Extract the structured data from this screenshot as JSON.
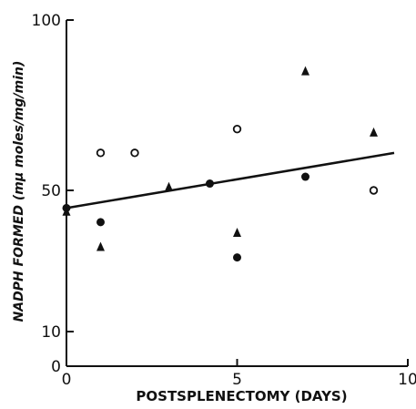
{
  "chart_data": {
    "type": "scatter",
    "title": "",
    "xlabel": "POSTSPLENECTOMY (DAYS)",
    "ylabel": "NADPH FORMED (mμ moles/mg/min)",
    "xlim": [
      0,
      10
    ],
    "ylim": [
      0,
      100
    ],
    "x_ticks": [
      0,
      5,
      10
    ],
    "x_tick_labels": [
      "0",
      "5",
      "10"
    ],
    "y_ticks": [
      0,
      10,
      50,
      100
    ],
    "y_tick_labels": [
      "0",
      "10",
      "50",
      "100"
    ],
    "grid": false,
    "legend": "none",
    "series": [
      {
        "marker": "open-circle",
        "points": [
          [
            1,
            61
          ],
          [
            2,
            61
          ],
          [
            5,
            68
          ],
          [
            9,
            50
          ]
        ]
      },
      {
        "marker": "filled-circle",
        "points": [
          [
            0,
            45
          ],
          [
            1,
            41
          ],
          [
            4.2,
            52
          ],
          [
            5,
            31
          ],
          [
            7,
            54
          ]
        ]
      },
      {
        "marker": "filled-triangle",
        "points": [
          [
            0,
            44
          ],
          [
            1,
            34
          ],
          [
            3,
            51
          ],
          [
            5,
            38
          ],
          [
            7,
            85
          ],
          [
            9,
            67
          ]
        ]
      }
    ],
    "trend_line": {
      "x": [
        0,
        9.6
      ],
      "y": [
        45,
        61
      ]
    }
  }
}
